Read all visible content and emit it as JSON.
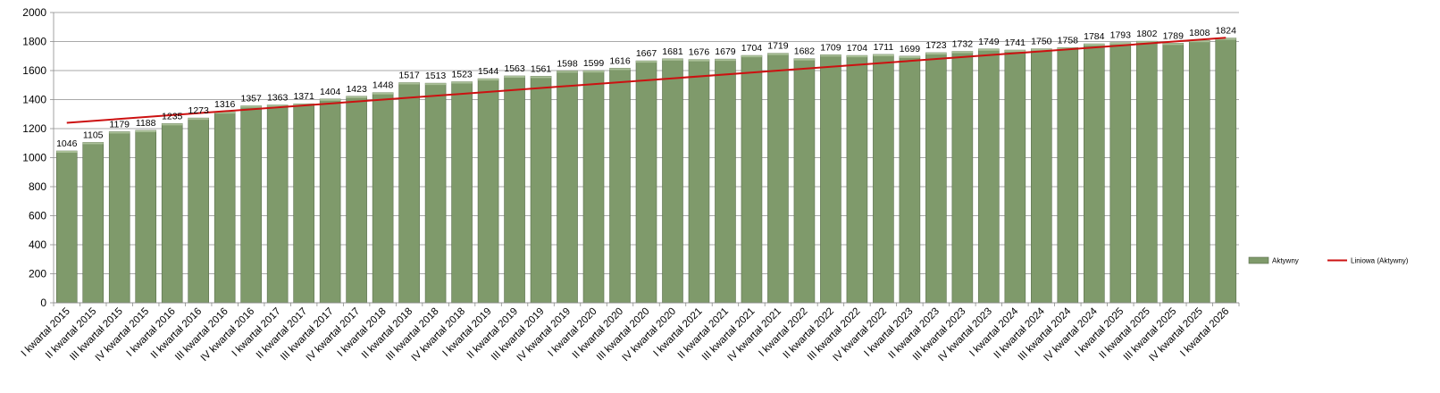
{
  "chart_data": {
    "type": "bar",
    "title": "",
    "xlabel": "",
    "ylabel": "",
    "ylim": [
      0,
      2000
    ],
    "y_ticks": [
      0,
      200,
      400,
      600,
      800,
      1000,
      1200,
      1400,
      1600,
      1800,
      2000
    ],
    "grid": "horizontal",
    "legend_position": "right",
    "categories": [
      "I kwartał 2015",
      "II kwartał 2015",
      "III kwartał 2015",
      "IV kwartał 2015",
      "I kwartał 2016",
      "II kwartał 2016",
      "III kwartał 2016",
      "IV kwartał 2016",
      "I kwartał 2017",
      "II kwartał 2017",
      "III kwartał 2017",
      "IV kwartał 2017",
      "I kwartał 2018",
      "II kwartał 2018",
      "III kwartał 2018",
      "IV kwartał 2018",
      "I kwartał 2019",
      "II kwartał 2019",
      "III kwartał 2019",
      "IV kwartał 2019",
      "I kwartał 2020",
      "II kwartał 2020",
      "III kwartał 2020",
      "IV kwartał 2020",
      "I kwartał 2021",
      "II kwartał 2021",
      "III kwartał 2021",
      "IV kwartał 2021",
      "I kwartał 2022",
      "II kwartał 2022",
      "III kwartał 2022",
      "IV kwartał 2022",
      "I kwartał 2023",
      "II kwartał 2023",
      "III kwartał 2023",
      "IV kwartał 2023",
      "I kwartał 2024",
      "II kwartał 2024",
      "III kwartał 2024",
      "IV kwartał 2024",
      "I kwartał 2025",
      "II kwartał 2025",
      "III kwartał 2025",
      "IV kwartał 2025",
      "I kwartał 2026"
    ],
    "series": [
      {
        "name": "Aktywny",
        "type": "bar",
        "color": "#7f9a6b",
        "values": [
          1046,
          1105,
          1179,
          1188,
          1235,
          1273,
          1316,
          1357,
          1363,
          1371,
          1404,
          1423,
          1448,
          1517,
          1513,
          1523,
          1544,
          1563,
          1561,
          1598,
          1599,
          1616,
          1667,
          1681,
          1676,
          1679,
          1704,
          1719,
          1682,
          1709,
          1704,
          1711,
          1699,
          1723,
          1732,
          1749,
          1741,
          1750,
          1758,
          1784,
          1793,
          1802,
          1789,
          1808,
          1824
        ]
      },
      {
        "name": "Liniowa (Aktywny)",
        "type": "trendline",
        "color": "#cc1111",
        "start": 1240,
        "end": 1826
      }
    ]
  }
}
